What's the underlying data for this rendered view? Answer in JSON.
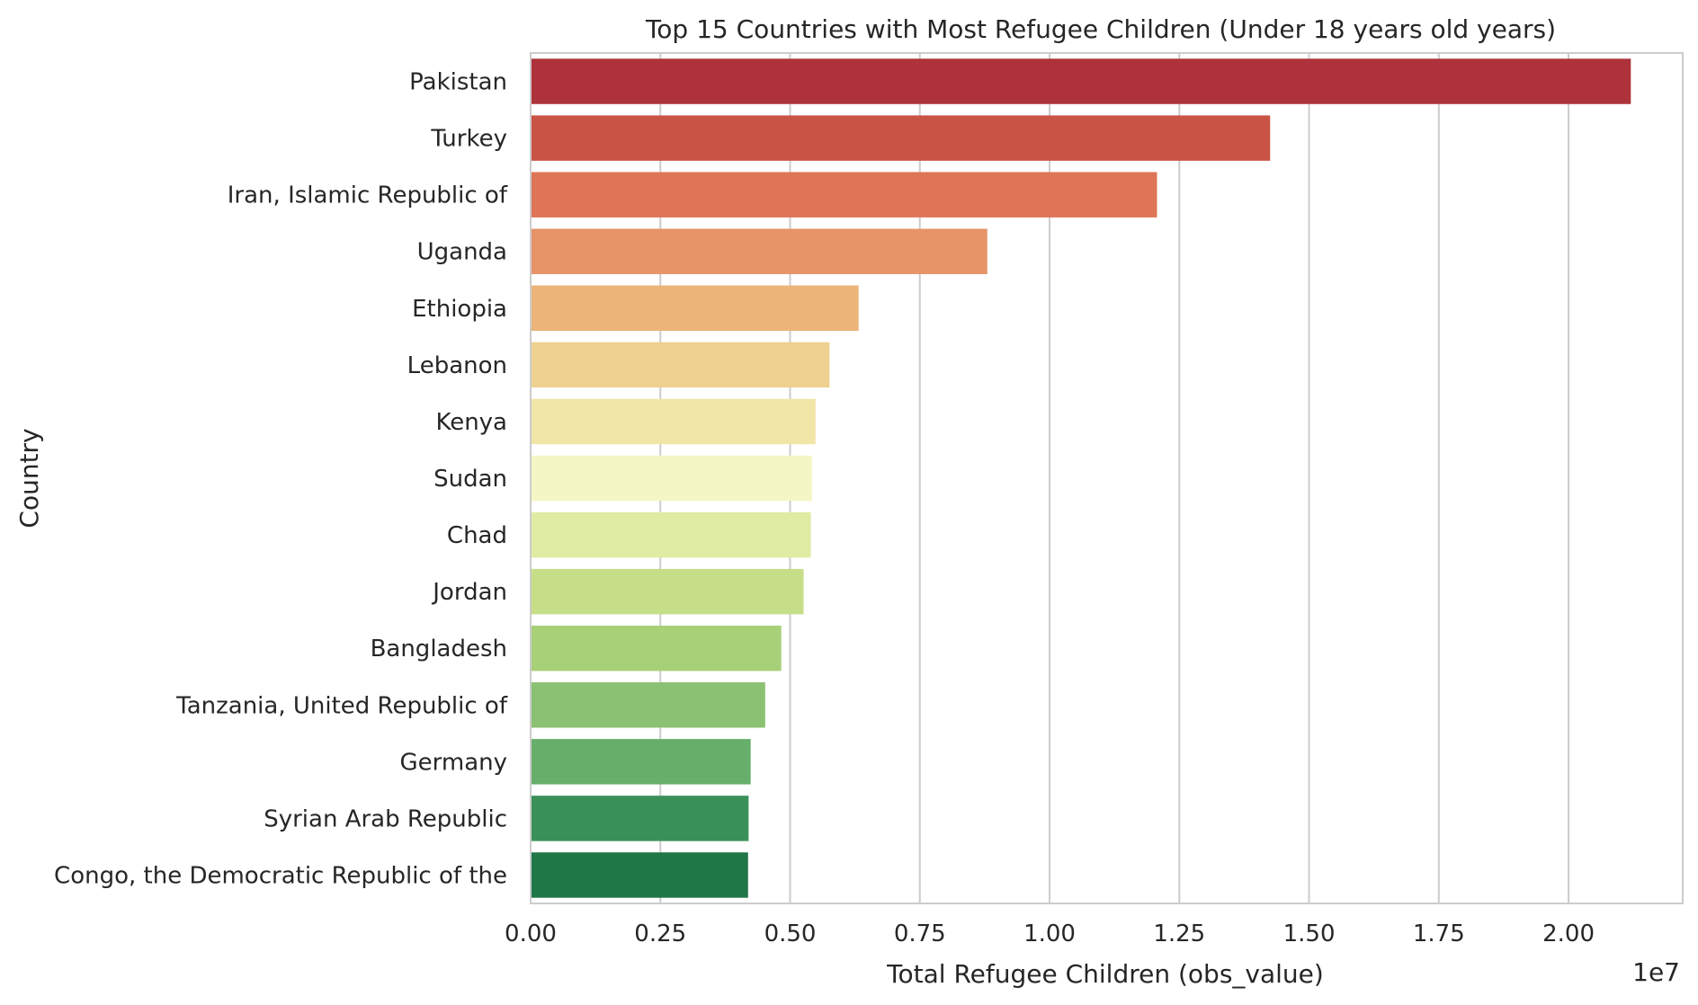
{
  "chart_data": {
    "type": "bar",
    "orientation": "horizontal",
    "title": "Top 15 Countries with Most Refugee Children (Under 18 years old years)",
    "xlabel": "Total Refugee Children (obs_value)",
    "ylabel": "Country",
    "x_offset_label": "1e7",
    "x_scale": 10000000,
    "xlim": [
      0,
      22200000
    ],
    "x_ticks": [
      0,
      2500000,
      5000000,
      7500000,
      10000000,
      12500000,
      15000000,
      17500000,
      20000000
    ],
    "x_tick_labels": [
      "0.00",
      "0.25",
      "0.50",
      "0.75",
      "1.00",
      "1.25",
      "1.50",
      "1.75",
      "2.00"
    ],
    "grid": "vertical",
    "categories": [
      "Pakistan",
      "Turkey",
      "Iran, Islamic Republic of",
      "Uganda",
      "Ethiopia",
      "Lebanon",
      "Kenya",
      "Sudan",
      "Chad",
      "Jordan",
      "Bangladesh",
      "Tanzania, United Republic of",
      "Germany",
      "Syrian Arab Republic",
      "Congo, the Democratic Republic of the"
    ],
    "values": [
      21200000,
      14250000,
      12070000,
      8800000,
      6320000,
      5760000,
      5490000,
      5420000,
      5400000,
      5260000,
      4830000,
      4520000,
      4240000,
      4200000,
      4190000
    ],
    "colors": [
      "#ae323a",
      "#c95445",
      "#dd7556",
      "#e69468",
      "#ecb479",
      "#eed091",
      "#f2e5a8",
      "#f4f7c5",
      "#e0eba3",
      "#c6de87",
      "#a8d079",
      "#8bc172",
      "#66ae6a",
      "#3a9158",
      "#1f7647"
    ]
  }
}
